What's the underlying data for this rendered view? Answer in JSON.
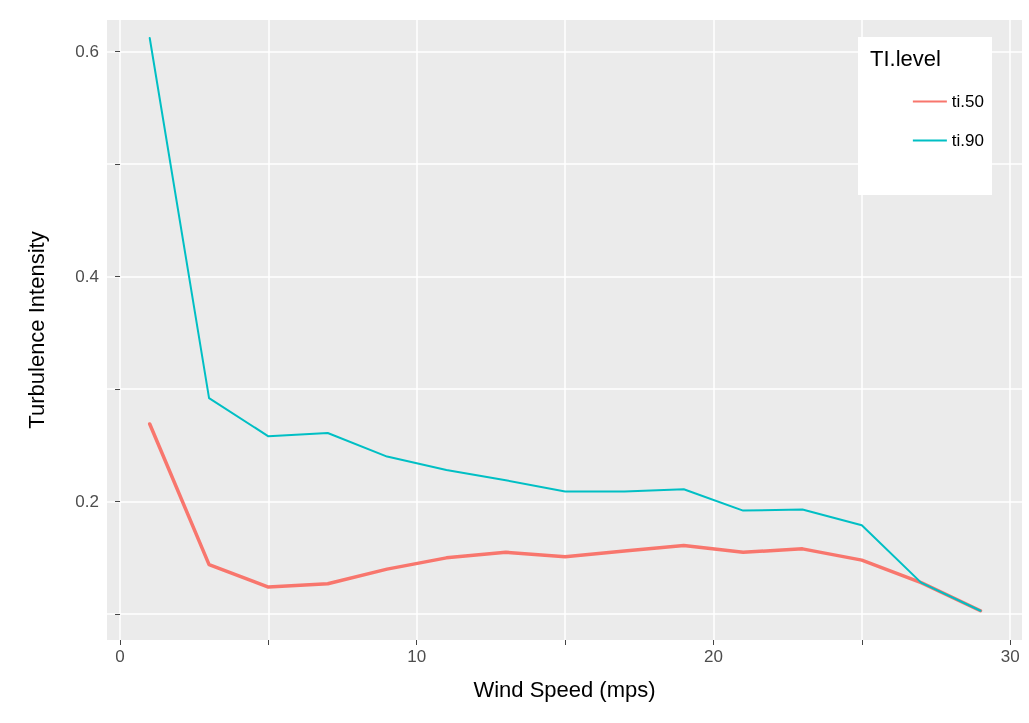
{
  "chart_data": {
    "type": "line",
    "xlabel": "Wind Speed (mps)",
    "ylabel": "Turbulence Intensity",
    "legend_title": "TI.level",
    "x": [
      1,
      3,
      5,
      7,
      9,
      11,
      13,
      15,
      17,
      19,
      21,
      23,
      25,
      27,
      29
    ],
    "series": [
      {
        "name": "ti.50",
        "color": "#f8766d",
        "values": [
          0.269,
          0.144,
          0.124,
          0.127,
          0.14,
          0.15,
          0.155,
          0.151,
          0.156,
          0.161,
          0.155,
          0.158,
          0.148,
          0.128,
          0.103
        ]
      },
      {
        "name": "ti.90",
        "color": "#00bfc4",
        "values": [
          0.612,
          0.292,
          0.258,
          0.261,
          0.24,
          0.228,
          0.219,
          0.209,
          0.209,
          0.211,
          0.192,
          0.193,
          0.179,
          0.128,
          0.103
        ]
      }
    ],
    "xlim": [
      -0.44,
      30.4
    ],
    "ylim": [
      0.077,
      0.628
    ],
    "xticks": [
      0,
      {
        "value": 5,
        "label": null
      },
      10,
      {
        "value": 15,
        "label": null
      },
      20,
      {
        "value": 25,
        "label": null
      },
      30
    ],
    "yticks": [
      {
        "value": 0.1,
        "label": null
      },
      0.2,
      {
        "value": 0.3,
        "label": null
      },
      0.4,
      {
        "value": 0.5,
        "label": null
      },
      0.6
    ],
    "grid": true,
    "legend": "top right",
    "marker": "none",
    "line_style": "solid"
  }
}
